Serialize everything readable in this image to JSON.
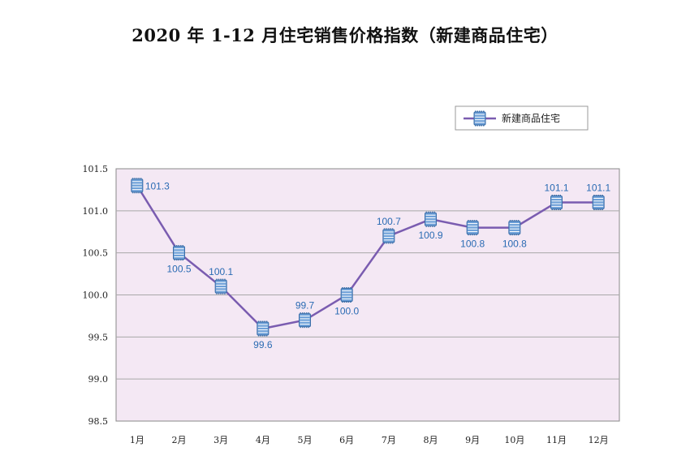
{
  "title": "2020 年 1-12 月住宅销售价格指数（新建商品住宅）",
  "chart_data": {
    "type": "line",
    "title": "2020 年 1-12 月住宅销售价格指数（新建商品住宅）",
    "categories": [
      "1月",
      "2月",
      "3月",
      "4月",
      "5月",
      "6月",
      "7月",
      "8月",
      "9月",
      "10月",
      "11月",
      "12月"
    ],
    "series": [
      {
        "name": "新建商品住宅",
        "values": [
          101.3,
          100.5,
          100.1,
          99.6,
          99.7,
          100.0,
          100.7,
          100.9,
          100.8,
          100.8,
          101.1,
          101.1
        ],
        "data_labels": [
          "101.3",
          "100.5",
          "100.1",
          "99.6",
          "99.7",
          "100.0",
          "100.7",
          "100.9",
          "100.8",
          "100.8",
          "101.1",
          "101.1"
        ]
      }
    ],
    "y_ticks": [
      "98.5",
      "99.0",
      "99.5",
      "100.0",
      "100.5",
      "101.0",
      "101.5"
    ],
    "ylim": [
      98.5,
      101.5
    ],
    "xlabel": "",
    "ylabel": "",
    "grid": true,
    "legend_position": "top-right",
    "colors": {
      "line": "#7a5cb0",
      "plot_background": "#f4e8f4",
      "gridline": "#a8a8a8",
      "label": "#2a6bb3",
      "marker_fill": "#6ea0d8",
      "marker_stroke": "#3a6ea8"
    }
  }
}
